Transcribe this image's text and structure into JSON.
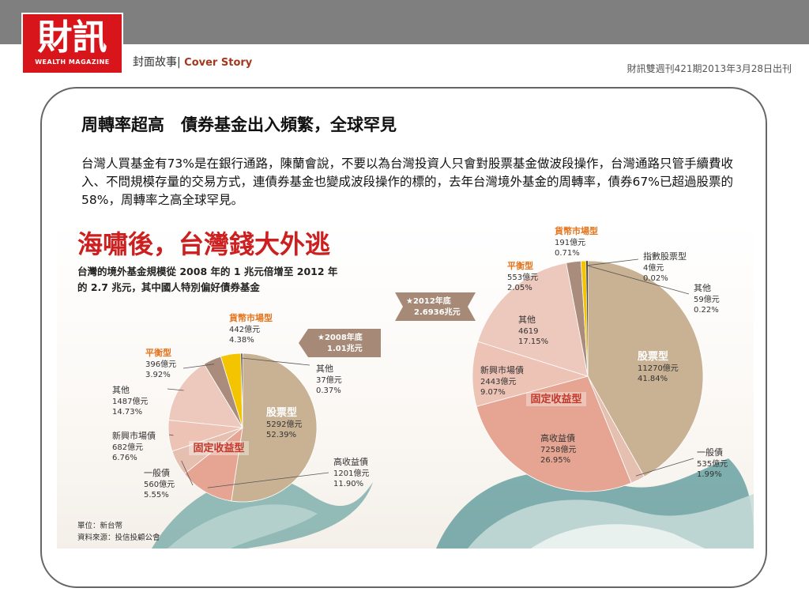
{
  "header": {
    "logo_main": "財訊",
    "logo_sub": "WEALTH MAGAZINE",
    "section_zh": "封面故事",
    "section_sep": "|",
    "section_en": "Cover  Story",
    "issue": "財訊雙週刊421期2013年3月28日出刊"
  },
  "article": {
    "headline": "周轉率超高　債券基金出入頻繁，全球罕見",
    "body": "台灣人買基金有73%是在銀行通路，陳蘭會說，不要以為台灣投資人只會對股票基金做波段操作，台灣通路只管手續費收入、不問規模存量的交易方式，連債券基金也變成波段操作的標的，去年台灣境外基金的周轉率，債券67%已超過股票的58%，周轉率之高全球罕見。"
  },
  "infographic": {
    "title": "海嘯後，台灣錢大外逃",
    "subtitle_line1": "台灣的境外基金規模從 2008 年的 1 兆元倍增至 2012 年",
    "subtitle_line2": "的 2.7 兆元，其中國人特別偏好債券基金",
    "footnote_unit": "單位：新台幣",
    "footnote_source": "資料來源：投信投顧公會",
    "fixed_income_label": "固定收益型",
    "colors": {
      "stock": "#c8b293",
      "high_yield": "#e6a592",
      "general_bond": "#e5bfaf",
      "emerging_bond": "#edc3b6",
      "other": "#ecc8bd",
      "balanced": "#a98c7b",
      "money_market": "#f5c400",
      "index_stock": "#2b2b2b",
      "others_small": "#2b2b2b",
      "title_red": "#cc1f1f",
      "label_orange": "#e3741c",
      "fixed_income_red": "#c0392b"
    }
  },
  "chart_data": [
    {
      "type": "pie",
      "title": "2008年底",
      "total": "1.01兆元",
      "unit": "億元",
      "series": [
        {
          "name": "股票型",
          "value": 5292,
          "percent": 52.39,
          "value_text": "5292億元",
          "percent_text": "52.39%"
        },
        {
          "name": "高收益債",
          "value": 1201,
          "percent": 11.9,
          "value_text": "1201億元",
          "percent_text": "11.90%"
        },
        {
          "name": "一般債",
          "value": 560,
          "percent": 5.55,
          "value_text": "560億元",
          "percent_text": "5.55%"
        },
        {
          "name": "新興市場債",
          "value": 682,
          "percent": 6.76,
          "value_text": "682億元",
          "percent_text": "6.76%"
        },
        {
          "name": "其他",
          "value": 1487,
          "percent": 14.73,
          "value_text": "1487億元",
          "percent_text": "14.73%"
        },
        {
          "name": "平衡型",
          "value": 396,
          "percent": 3.92,
          "value_text": "396億元",
          "percent_text": "3.92%"
        },
        {
          "name": "貨幣市場型",
          "value": 442,
          "percent": 4.38,
          "value_text": "442億元",
          "percent_text": "4.38%"
        },
        {
          "name": "其他",
          "value": 37,
          "percent": 0.37,
          "value_text": "37億元",
          "percent_text": "0.37%"
        }
      ]
    },
    {
      "type": "pie",
      "title": "2012年底",
      "total": "2.6936兆元",
      "unit": "億元",
      "series": [
        {
          "name": "股票型",
          "value": 11270,
          "percent": 41.84,
          "value_text": "11270億元",
          "percent_text": "41.84%"
        },
        {
          "name": "一般債",
          "value": 535,
          "percent": 1.99,
          "value_text": "535億元",
          "percent_text": "1.99%"
        },
        {
          "name": "高收益債",
          "value": 7258,
          "percent": 26.95,
          "value_text": "7258億元",
          "percent_text": "26.95%"
        },
        {
          "name": "新興市場債",
          "value": 2443,
          "percent": 9.07,
          "value_text": "2443億元",
          "percent_text": "9.07%"
        },
        {
          "name": "其他",
          "value": 4619,
          "percent": 17.15,
          "value_text": "4619",
          "percent_text": "17.15%"
        },
        {
          "name": "平衡型",
          "value": 553,
          "percent": 2.05,
          "value_text": "553億元",
          "percent_text": "2.05%"
        },
        {
          "name": "貨幣市場型",
          "value": 191,
          "percent": 0.71,
          "value_text": "191億元",
          "percent_text": "0.71%"
        },
        {
          "name": "指數股票型",
          "value": 4,
          "percent": 0.02,
          "value_text": "4億元",
          "percent_text": "0.02%"
        },
        {
          "name": "其他",
          "value": 59,
          "percent": 0.22,
          "value_text": "59億元",
          "percent_text": "0.22%"
        }
      ]
    }
  ]
}
